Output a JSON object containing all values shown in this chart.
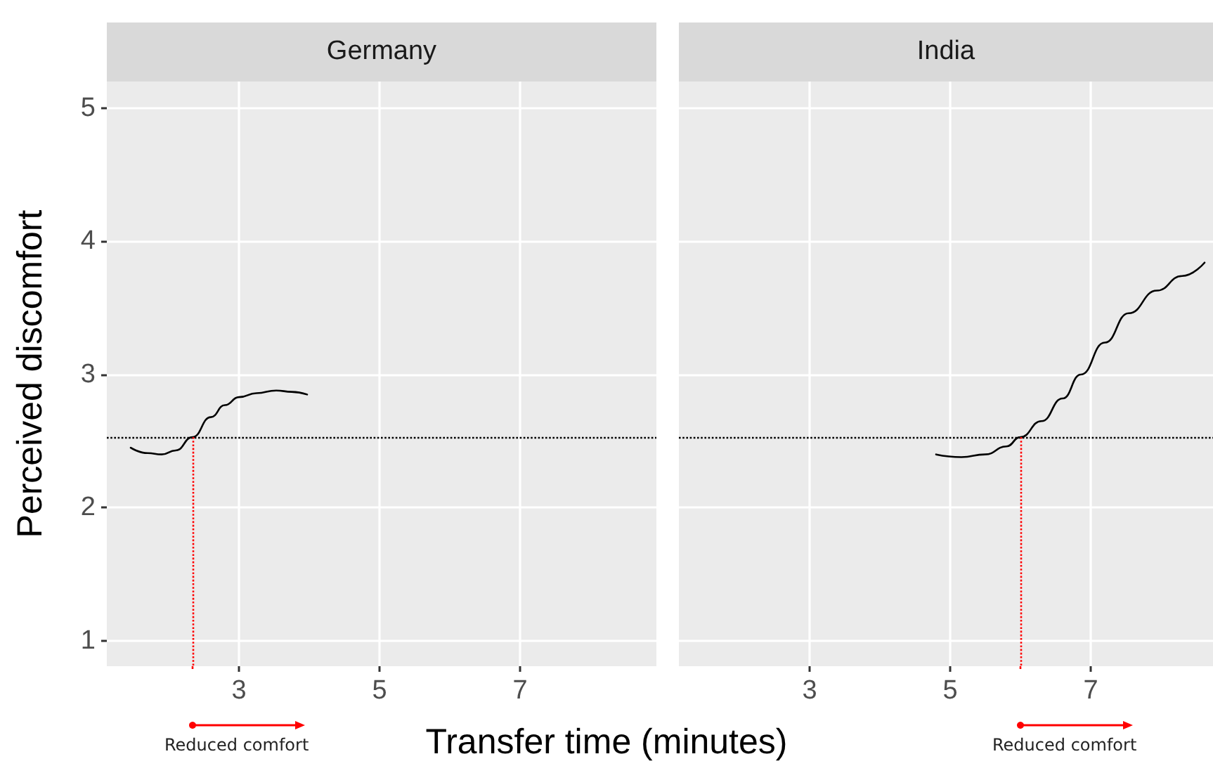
{
  "chart_data": [
    {
      "type": "line",
      "title": "Germany",
      "xlabel": "Transfer time (minutes)",
      "ylabel": "Perceived discomfort",
      "x": [
        1.46,
        1.7,
        1.9,
        2.1,
        2.34,
        2.6,
        2.8,
        3.0,
        3.25,
        3.53,
        3.75,
        3.97
      ],
      "series": [
        {
          "color": "#000000",
          "values": [
            2.45,
            2.41,
            2.4,
            2.43,
            2.53,
            2.68,
            2.77,
            2.83,
            2.86,
            2.88,
            2.87,
            2.85
          ]
        }
      ],
      "xlim": [
        1.12,
        8.94
      ],
      "xticks": [
        3,
        5,
        7
      ],
      "ylim": [
        0.81,
        5.2
      ],
      "yticks": [
        1,
        2,
        3,
        4,
        5
      ],
      "grid": true,
      "marker": "none",
      "line_style": "solid",
      "ref_lines": [
        {
          "axis": "y",
          "value": 2.53,
          "color": "#000000",
          "line_style": "dotted"
        },
        {
          "axis": "x",
          "value": 2.34,
          "color": "#ff0000",
          "line_style": "dotted"
        }
      ],
      "annotations": [
        "Reduced comfort"
      ]
    },
    {
      "type": "line",
      "title": "India",
      "x": [
        4.8,
        5.16,
        5.5,
        5.8,
        6.0,
        6.3,
        6.6,
        6.86,
        7.2,
        7.54,
        7.94,
        8.3,
        8.62
      ],
      "series": [
        {
          "color": "#000000",
          "values": [
            2.4,
            2.38,
            2.4,
            2.46,
            2.53,
            2.65,
            2.82,
            3.0,
            3.24,
            3.46,
            3.63,
            3.74,
            3.84
          ]
        }
      ],
      "xlim": [
        1.14,
        8.74
      ],
      "xticks": [
        3,
        5,
        7
      ],
      "ylim": [
        0.81,
        5.2
      ],
      "yticks": [
        1,
        2,
        3,
        4,
        5
      ],
      "grid": true,
      "marker": "none",
      "line_style": "solid",
      "tick_labels": "x",
      "ref_lines": [
        {
          "axis": "y",
          "value": 2.53,
          "color": "#000000",
          "line_style": "dotted"
        },
        {
          "axis": "x",
          "value": 6.0,
          "color": "#ff0000",
          "line_style": "dotted"
        }
      ],
      "annotations": [
        "Reduced comfort"
      ]
    }
  ]
}
